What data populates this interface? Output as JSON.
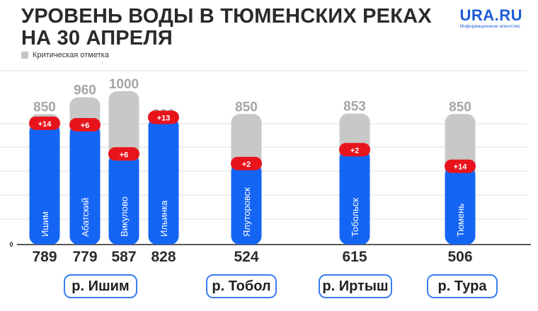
{
  "header": {
    "title_line1": "УРОВЕНЬ ВОДЫ В ТЮМЕНСКИХ РЕКАХ",
    "title_line2": "НА 30 АПРЕЛЯ",
    "logo_name": "URA.RU",
    "logo_sub": "Информационное агентство"
  },
  "legend": {
    "critical_label": "Критическая отметка"
  },
  "colors": {
    "level": "#1565f5",
    "critical": "#c8c8c8",
    "change": "#e8141c",
    "grid": "#e2e2e2",
    "text": "#2a2a2a",
    "critical_text": "#a6a6a6"
  },
  "chart_data": {
    "type": "bar",
    "zero_label": "0",
    "ylim": [
      0,
      1000
    ],
    "categories": [
      "Ишим",
      "Абатский",
      "Викулово",
      "Ильинка",
      "Ялуторовск",
      "Тобольск",
      "Тюмень"
    ],
    "series": [
      {
        "name": "",
        "values": [
          789,
          779,
          587,
          828,
          524,
          615,
          506
        ]
      },
      {
        "name": "Критическая отметка",
        "values": [
          850,
          960,
          1000,
          800,
          850,
          853,
          850
        ]
      }
    ],
    "changes": [
      "+14",
      "+6",
      "+6",
      "+13",
      "+2",
      "+2",
      "+14"
    ],
    "rivers": [
      "р. Ишим",
      "р. Тобол",
      "р. Иртыш",
      "р. Тура"
    ]
  }
}
